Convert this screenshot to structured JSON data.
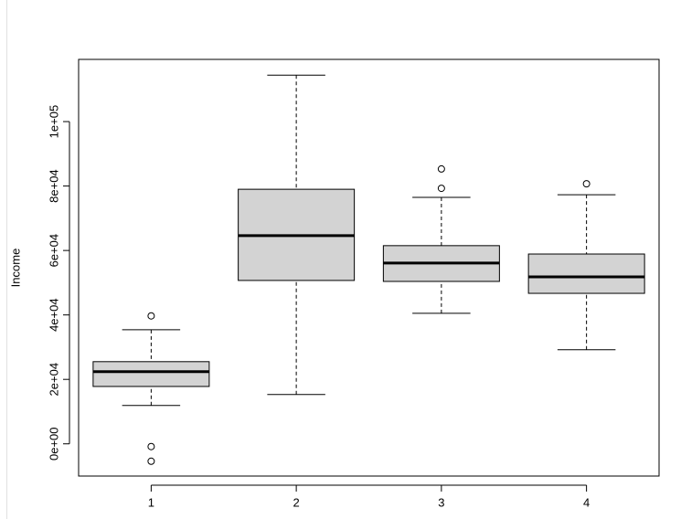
{
  "chart_data": {
    "type": "boxplot",
    "ylabel": "Income",
    "categories": [
      "1",
      "2",
      "3",
      "4"
    ],
    "boxes": [
      {
        "whislo": 11900,
        "q1": 17800,
        "med": 22400,
        "q3": 25500,
        "whishi": 35400,
        "outliers": [
          39700,
          -850,
          -5400
        ]
      },
      {
        "whislo": 15300,
        "q1": 50700,
        "med": 64600,
        "q3": 79000,
        "whishi": 114400,
        "outliers": []
      },
      {
        "whislo": 40500,
        "q1": 50400,
        "med": 56100,
        "q3": 61500,
        "whishi": 76500,
        "outliers": [
          79300,
          85300
        ]
      },
      {
        "whislo": 29200,
        "q1": 46700,
        "med": 51800,
        "q3": 58900,
        "whishi": 77300,
        "outliers": [
          80700
        ]
      }
    ],
    "color": "#d3d3d3",
    "ylim": [
      -10000,
      119300
    ],
    "yticks": [
      {
        "value": 0,
        "label": "0e+00"
      },
      {
        "value": 20000,
        "label": "2e+04"
      },
      {
        "value": 40000,
        "label": "4e+04"
      },
      {
        "value": 60000,
        "label": "6e+04"
      },
      {
        "value": 80000,
        "label": "8e+04"
      },
      {
        "value": 100000,
        "label": "1e+05"
      }
    ]
  }
}
